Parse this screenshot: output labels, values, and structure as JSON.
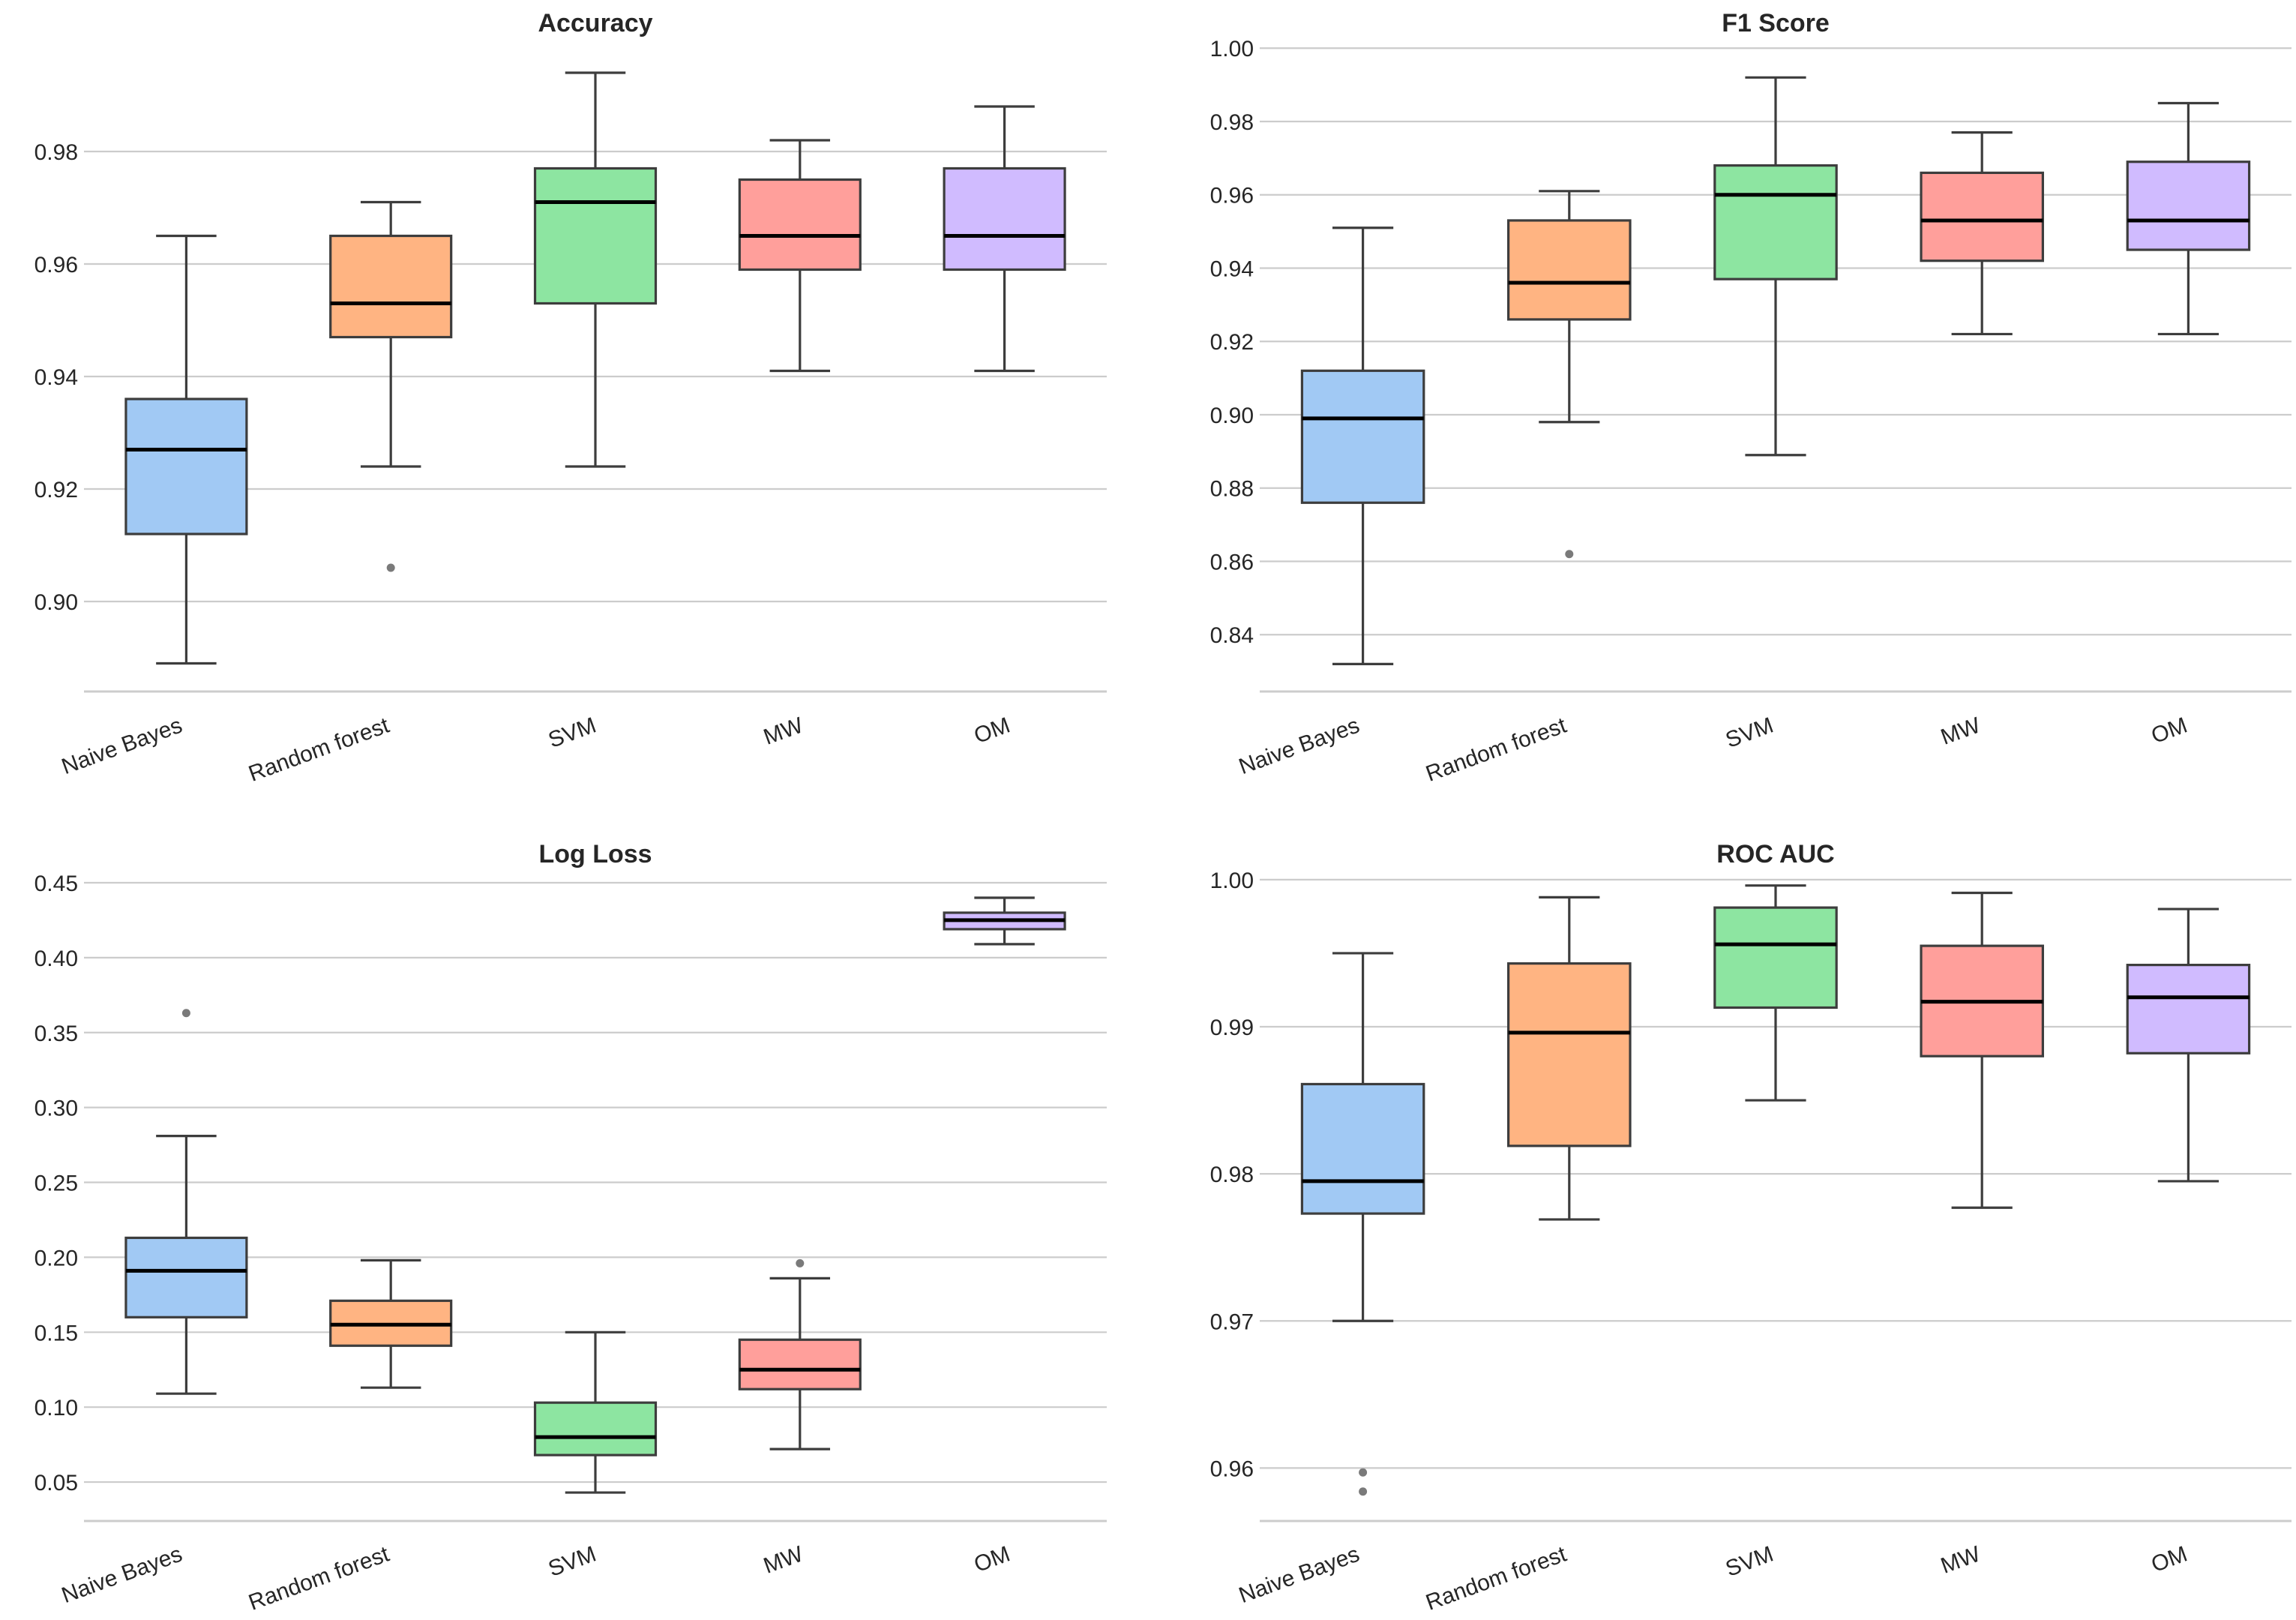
{
  "colors": {
    "Naive Bayes": "#a1c9f4",
    "Random forest": "#ffb482",
    "SVM": "#8de5a1",
    "MW": "#ff9f9b",
    "OM": "#d0bbff",
    "grid": "#cccccc",
    "box_edge": "#3d3d3d",
    "median": "#000000",
    "outlier": "#7a7a7a",
    "text": "#262626"
  },
  "chart_data": [
    {
      "type": "box",
      "title": "Accuracy",
      "xlabel": "",
      "ylabel": "",
      "categories": [
        "Naive Bayes",
        "Random forest",
        "SVM",
        "MW",
        "OM"
      ],
      "ylim": [
        0.884,
        1.0
      ],
      "yticks": [
        0.9,
        0.92,
        0.94,
        0.96,
        0.98
      ],
      "ytick_labels": [
        "0.90",
        "0.92",
        "0.94",
        "0.96",
        "0.98"
      ],
      "boxes": [
        {
          "whislo": 0.889,
          "q1": 0.912,
          "med": 0.927,
          "q3": 0.936,
          "whishi": 0.965,
          "fliers": []
        },
        {
          "whislo": 0.924,
          "q1": 0.947,
          "med": 0.953,
          "q3": 0.965,
          "whishi": 0.971,
          "fliers": [
            0.906
          ]
        },
        {
          "whislo": 0.924,
          "q1": 0.953,
          "med": 0.971,
          "q3": 0.977,
          "whishi": 0.994,
          "fliers": []
        },
        {
          "whislo": 0.941,
          "q1": 0.959,
          "med": 0.965,
          "q3": 0.975,
          "whishi": 0.982,
          "fliers": []
        },
        {
          "whislo": 0.941,
          "q1": 0.959,
          "med": 0.965,
          "q3": 0.977,
          "whishi": 0.988,
          "fliers": []
        }
      ]
    },
    {
      "type": "box",
      "title": "F1 Score",
      "xlabel": "",
      "ylabel": "",
      "categories": [
        "Naive Bayes",
        "Random forest",
        "SVM",
        "MW",
        "OM"
      ],
      "ylim": [
        0.8245,
        1.0025
      ],
      "yticks": [
        0.84,
        0.86,
        0.88,
        0.9,
        0.92,
        0.94,
        0.96,
        0.98,
        1.0
      ],
      "ytick_labels": [
        "0.84",
        "0.86",
        "0.88",
        "0.90",
        "0.92",
        "0.94",
        "0.96",
        "0.98",
        "1.00"
      ],
      "boxes": [
        {
          "whislo": 0.832,
          "q1": 0.876,
          "med": 0.899,
          "q3": 0.912,
          "whishi": 0.951,
          "fliers": []
        },
        {
          "whislo": 0.898,
          "q1": 0.926,
          "med": 0.936,
          "q3": 0.953,
          "whishi": 0.961,
          "fliers": [
            0.862
          ]
        },
        {
          "whislo": 0.889,
          "q1": 0.937,
          "med": 0.96,
          "q3": 0.968,
          "whishi": 0.992,
          "fliers": []
        },
        {
          "whislo": 0.922,
          "q1": 0.942,
          "med": 0.953,
          "q3": 0.966,
          "whishi": 0.977,
          "fliers": []
        },
        {
          "whislo": 0.922,
          "q1": 0.945,
          "med": 0.953,
          "q3": 0.969,
          "whishi": 0.985,
          "fliers": []
        }
      ]
    },
    {
      "type": "box",
      "title": "Log Loss",
      "xlabel": "",
      "ylabel": "",
      "categories": [
        "Naive Bayes",
        "Random forest",
        "SVM",
        "MW",
        "OM"
      ],
      "ylim": [
        0.024,
        0.456
      ],
      "yticks": [
        0.05,
        0.1,
        0.15,
        0.2,
        0.25,
        0.3,
        0.35,
        0.4,
        0.45
      ],
      "ytick_labels": [
        "0.05",
        "0.10",
        "0.15",
        "0.20",
        "0.25",
        "0.30",
        "0.35",
        "0.40",
        "0.45"
      ],
      "boxes": [
        {
          "whislo": 0.109,
          "q1": 0.16,
          "med": 0.191,
          "q3": 0.213,
          "whishi": 0.281,
          "fliers": [
            0.363
          ]
        },
        {
          "whislo": 0.113,
          "q1": 0.141,
          "med": 0.155,
          "q3": 0.171,
          "whishi": 0.198,
          "fliers": []
        },
        {
          "whislo": 0.043,
          "q1": 0.068,
          "med": 0.08,
          "q3": 0.103,
          "whishi": 0.15,
          "fliers": []
        },
        {
          "whislo": 0.072,
          "q1": 0.112,
          "med": 0.125,
          "q3": 0.145,
          "whishi": 0.186,
          "fliers": [
            0.196
          ]
        },
        {
          "whislo": 0.409,
          "q1": 0.419,
          "med": 0.425,
          "q3": 0.43,
          "whishi": 0.44,
          "fliers": []
        }
      ]
    },
    {
      "type": "box",
      "title": "ROC AUC",
      "xlabel": "",
      "ylabel": "",
      "categories": [
        "Naive Bayes",
        "Random forest",
        "SVM",
        "MW",
        "OM"
      ],
      "ylim": [
        0.9564,
        1.0004
      ],
      "yticks": [
        0.96,
        0.97,
        0.98,
        0.99,
        1.0
      ],
      "ytick_labels": [
        "0.96",
        "0.97",
        "0.98",
        "0.99",
        "1.00"
      ],
      "boxes": [
        {
          "whislo": 0.97,
          "q1": 0.9773,
          "med": 0.9795,
          "q3": 0.9861,
          "whishi": 0.995,
          "fliers": [
            0.9597,
            0.9584
          ]
        },
        {
          "whislo": 0.9769,
          "q1": 0.9819,
          "med": 0.9896,
          "q3": 0.9943,
          "whishi": 0.9988,
          "fliers": []
        },
        {
          "whislo": 0.985,
          "q1": 0.9913,
          "med": 0.9956,
          "q3": 0.9981,
          "whishi": 0.9996,
          "fliers": []
        },
        {
          "whislo": 0.9777,
          "q1": 0.988,
          "med": 0.9917,
          "q3": 0.9955,
          "whishi": 0.9991,
          "fliers": []
        },
        {
          "whislo": 0.9795,
          "q1": 0.9882,
          "med": 0.992,
          "q3": 0.9942,
          "whishi": 0.998,
          "fliers": []
        }
      ]
    }
  ]
}
